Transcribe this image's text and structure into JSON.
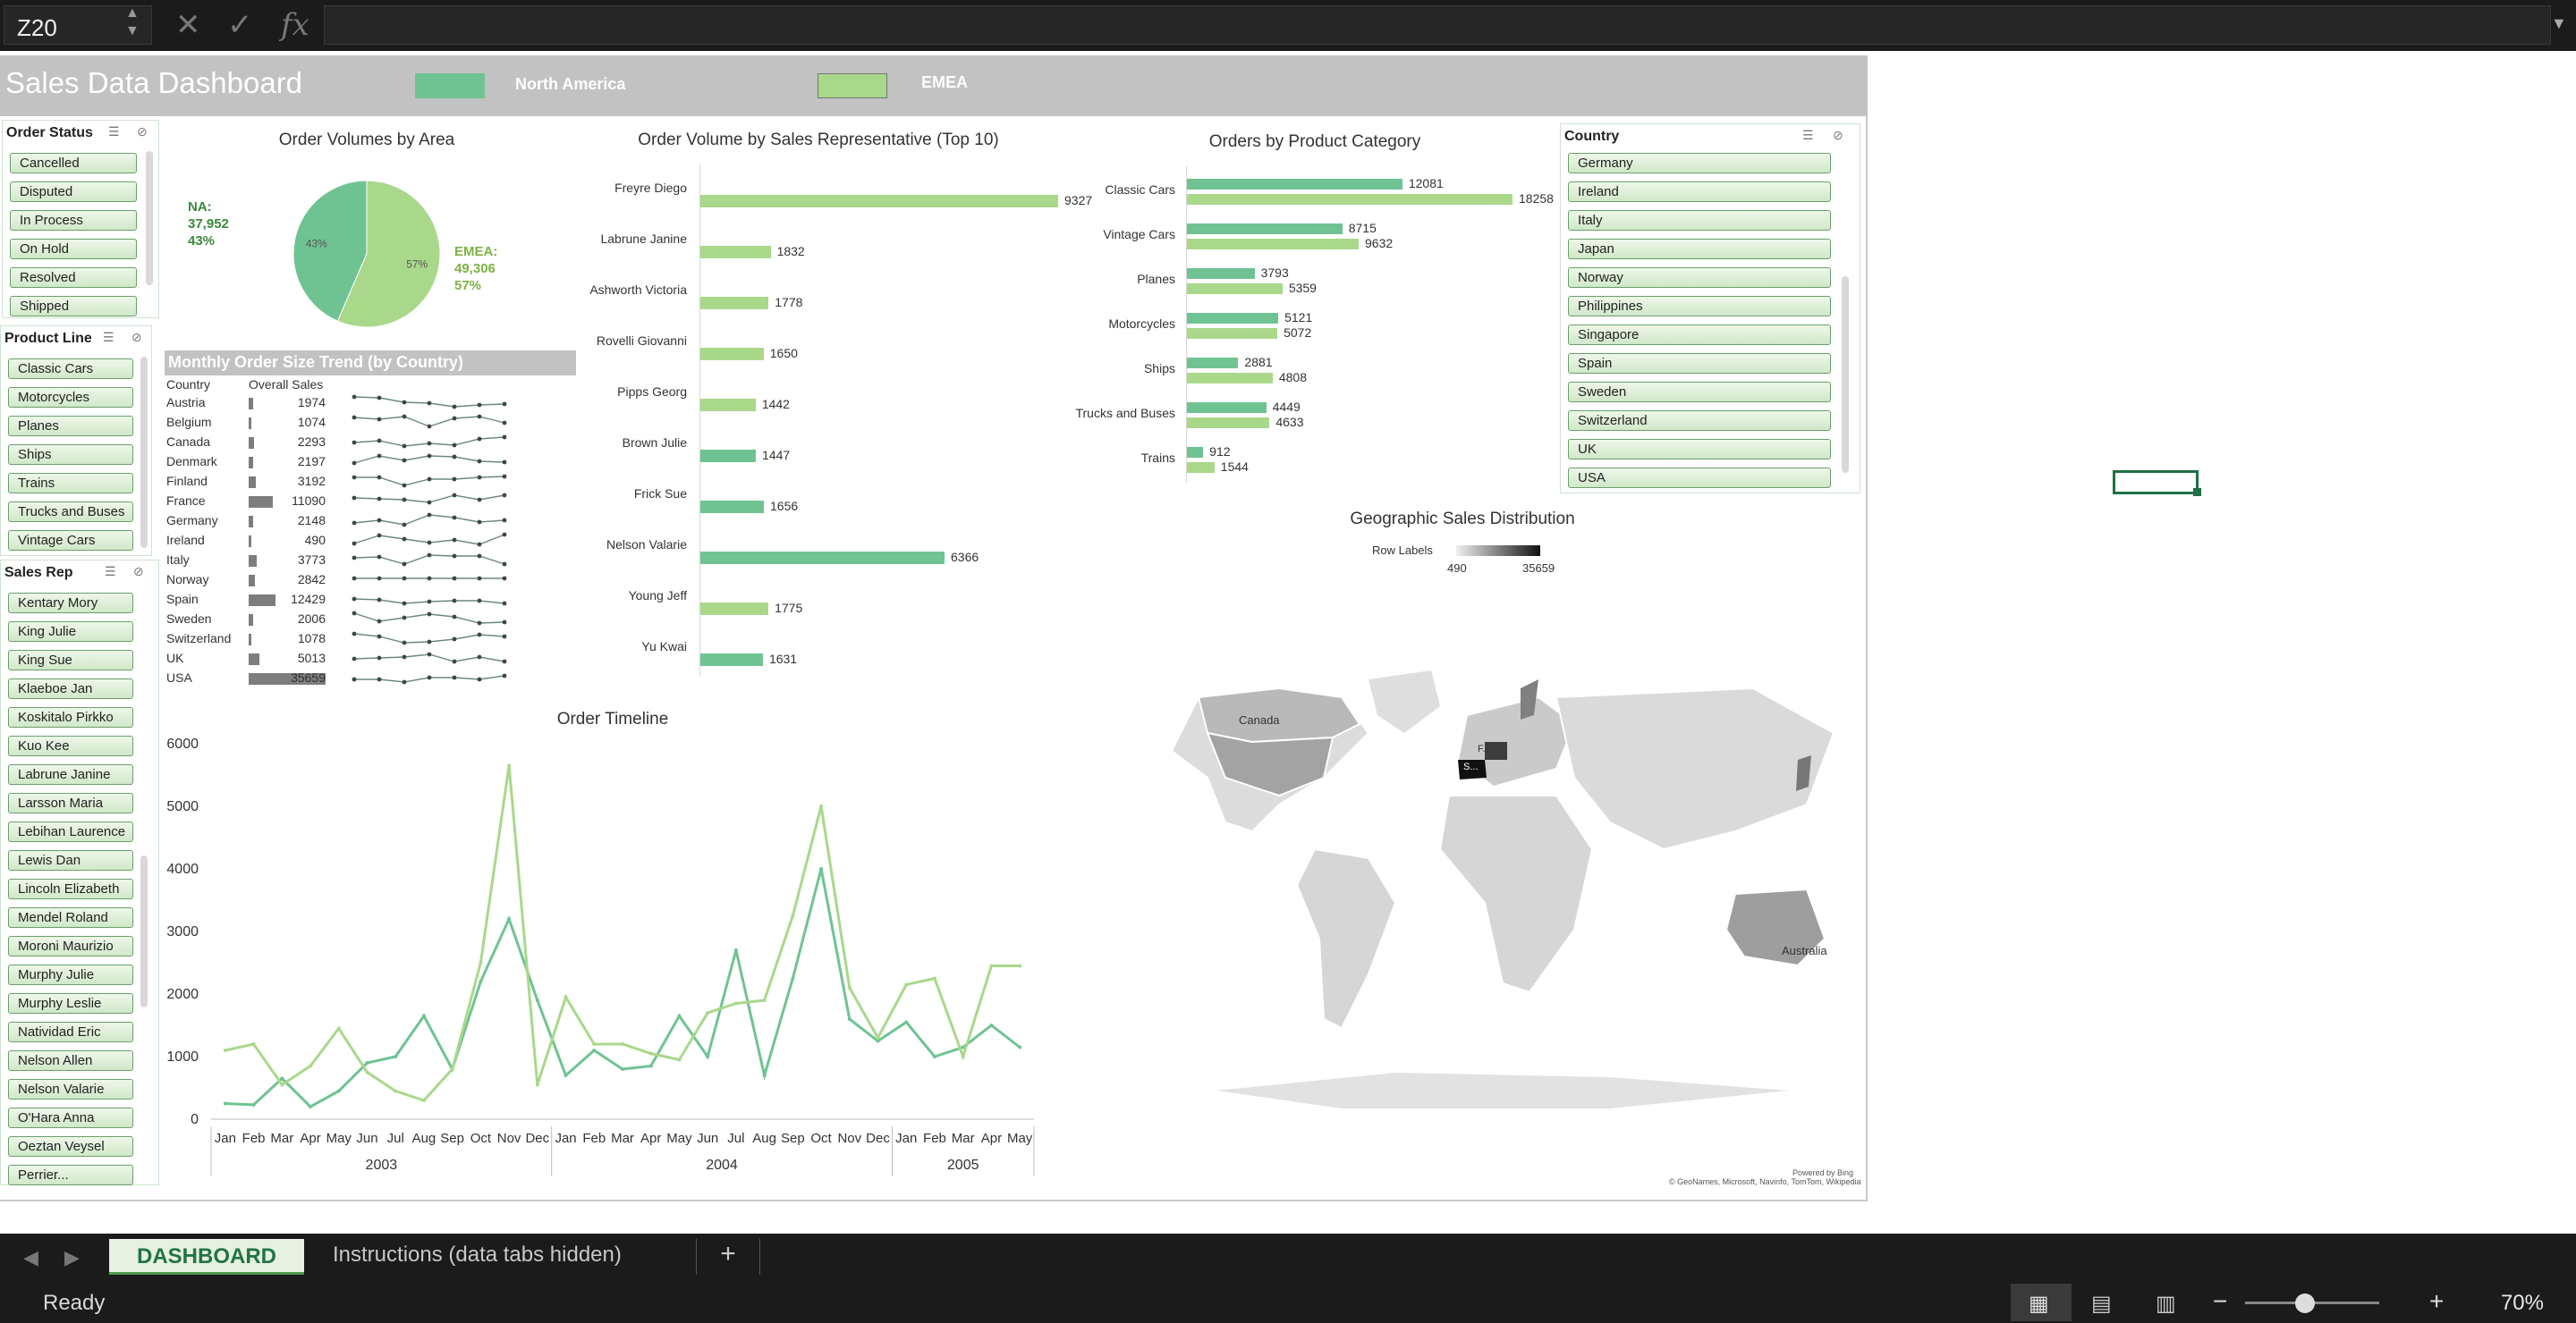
{
  "formula_bar": {
    "name_box": "Z20",
    "formula": ""
  },
  "dashboard": {
    "title": "Sales Data Dashboard",
    "legend": [
      {
        "label": "North America",
        "color": "#6fc393"
      },
      {
        "label": "EMEA",
        "color": "#a9d88b"
      }
    ]
  },
  "colors": {
    "na": "#6fc393",
    "emea": "#a9d88b",
    "banner": "#c2c2c2",
    "excel_green": "#217346"
  },
  "slicers": {
    "order_status": {
      "title": "Order Status",
      "items": [
        "Cancelled",
        "Disputed",
        "In Process",
        "On Hold",
        "Resolved",
        "Shipped"
      ]
    },
    "product_line": {
      "title": "Product Line",
      "items": [
        "Classic Cars",
        "Motorcycles",
        "Planes",
        "Ships",
        "Trains",
        "Trucks and Buses",
        "Vintage Cars"
      ]
    },
    "sales_rep": {
      "title": "Sales Rep",
      "items": [
        "Kentary Mory",
        "King Julie",
        "King Sue",
        "Klaeboe Jan",
        "Koskitalo Pirkko",
        "Kuo Kee",
        "Labrune Janine",
        "Larsson Maria",
        "Lebihan Laurence",
        "Lewis Dan",
        "Lincoln Elizabeth",
        "Mendel Roland",
        "Moroni Maurizio",
        "Murphy Julie",
        "Murphy Leslie",
        "Natividad Eric",
        "Nelson Allen",
        "Nelson Valarie",
        "O'Hara Anna",
        "Oeztan Veysel",
        "Perrier..."
      ]
    },
    "country": {
      "title": "Country",
      "items": [
        "Germany",
        "Ireland",
        "Italy",
        "Japan",
        "Norway",
        "Philippines",
        "Singapore",
        "Spain",
        "Sweden",
        "Switzerland",
        "UK",
        "USA"
      ]
    }
  },
  "chart_data": [
    {
      "type": "pie",
      "title": "Order Volumes by Area",
      "slices": [
        {
          "label": "NA:",
          "value": 37952,
          "value_text": "37,952",
          "percent": "43%"
        },
        {
          "label": "EMEA:",
          "value": 49306,
          "value_text": "49,306",
          "percent": "57%"
        }
      ]
    },
    {
      "type": "bar",
      "title": "Order Volume by Sales Representative (Top 10)",
      "categories": [
        "Freyre Diego",
        "Labrune Janine",
        "Ashworth Victoria",
        "Rovelli Giovanni",
        "Pipps Georg",
        "Brown Julie",
        "Frick Sue",
        "Nelson Valarie",
        "Young Jeff",
        "Yu Kwai"
      ],
      "values": [
        9327,
        1832,
        1778,
        1650,
        1442,
        1447,
        1656,
        6366,
        1775,
        1631
      ],
      "region": [
        "emea",
        "emea",
        "emea",
        "emea",
        "emea",
        "na",
        "na",
        "na",
        "emea",
        "na"
      ]
    },
    {
      "type": "bar",
      "title": "Orders by Product Category",
      "categories": [
        "Classic Cars",
        "Vintage Cars",
        "Planes",
        "Motorcycles",
        "Ships",
        "Trucks and Buses",
        "Trains"
      ],
      "series": [
        {
          "values": [
            12081,
            8715,
            3793,
            5121,
            2881,
            4449,
            912
          ]
        },
        {
          "values": [
            18258,
            9632,
            5359,
            5072,
            4808,
            4633,
            1544
          ]
        }
      ]
    },
    {
      "type": "table",
      "title": "Monthly Order Size Trend (by Country)",
      "headers": [
        "Country",
        "Overall Sales"
      ],
      "rows": [
        {
          "country": "Austria",
          "sales": 1974
        },
        {
          "country": "Belgium",
          "sales": 1074
        },
        {
          "country": "Canada",
          "sales": 2293
        },
        {
          "country": "Denmark",
          "sales": 2197
        },
        {
          "country": "Finland",
          "sales": 3192
        },
        {
          "country": "France",
          "sales": 11090
        },
        {
          "country": "Germany",
          "sales": 2148
        },
        {
          "country": "Ireland",
          "sales": 490
        },
        {
          "country": "Italy",
          "sales": 3773
        },
        {
          "country": "Norway",
          "sales": 2842
        },
        {
          "country": "Spain",
          "sales": 12429
        },
        {
          "country": "Sweden",
          "sales": 2006
        },
        {
          "country": "Switzerland",
          "sales": 1078
        },
        {
          "country": "UK",
          "sales": 5013
        },
        {
          "country": "USA",
          "sales": 35659
        }
      ]
    },
    {
      "type": "line",
      "title": "Order Timeline",
      "months": [
        "Jan",
        "Feb",
        "Mar",
        "Apr",
        "May",
        "Jun",
        "Jul",
        "Aug",
        "Sep",
        "Oct",
        "Nov",
        "Dec",
        "Jan",
        "Feb",
        "Mar",
        "Apr",
        "May",
        "Jun",
        "Jul",
        "Aug",
        "Sep",
        "Oct",
        "Nov",
        "Dec",
        "Jan",
        "Feb",
        "Mar",
        "Apr",
        "May"
      ],
      "years": [
        {
          "label": "2003",
          "span": 12
        },
        {
          "label": "2004",
          "span": 12
        },
        {
          "label": "2005",
          "span": 5
        }
      ],
      "ylim": [
        0,
        6000
      ],
      "yticks": [
        0,
        1000,
        2000,
        3000,
        4000,
        5000,
        6000
      ],
      "series": [
        {
          "color": "#6fc393",
          "values": [
            250,
            230,
            650,
            200,
            450,
            900,
            1000,
            1650,
            800,
            2200,
            3200,
            1900,
            700,
            1100,
            800,
            850,
            1650,
            1000,
            2700,
            700,
            2250,
            4000,
            1600,
            1250,
            1550,
            1000,
            1150,
            1500,
            1150
          ]
        },
        {
          "color": "#a9d88b",
          "values": [
            1100,
            1200,
            550,
            850,
            1450,
            750,
            450,
            300,
            800,
            2500,
            5650,
            550,
            1950,
            1200,
            1200,
            1050,
            950,
            1700,
            1850,
            1900,
            3250,
            5000,
            2100,
            1300,
            2150,
            2250,
            1000,
            2450,
            2450
          ]
        }
      ]
    },
    {
      "type": "map",
      "title": "Geographic Sales Distribution",
      "legend_label": "Row Labels",
      "legend_min": "490",
      "legend_max": "35659",
      "labels": [
        "Canada",
        "Australia",
        "F...",
        "S..."
      ],
      "attribution_1": "Powered by Bing",
      "attribution_2": "© GeoNames, Microsoft, Navinfo, TomTom, Wikipedia"
    }
  ],
  "sheet_tabs": {
    "active": "DASHBOARD",
    "other": "Instructions (data tabs hidden)",
    "add": "+"
  },
  "status_bar": {
    "status": "Ready",
    "zoom": "70%"
  }
}
